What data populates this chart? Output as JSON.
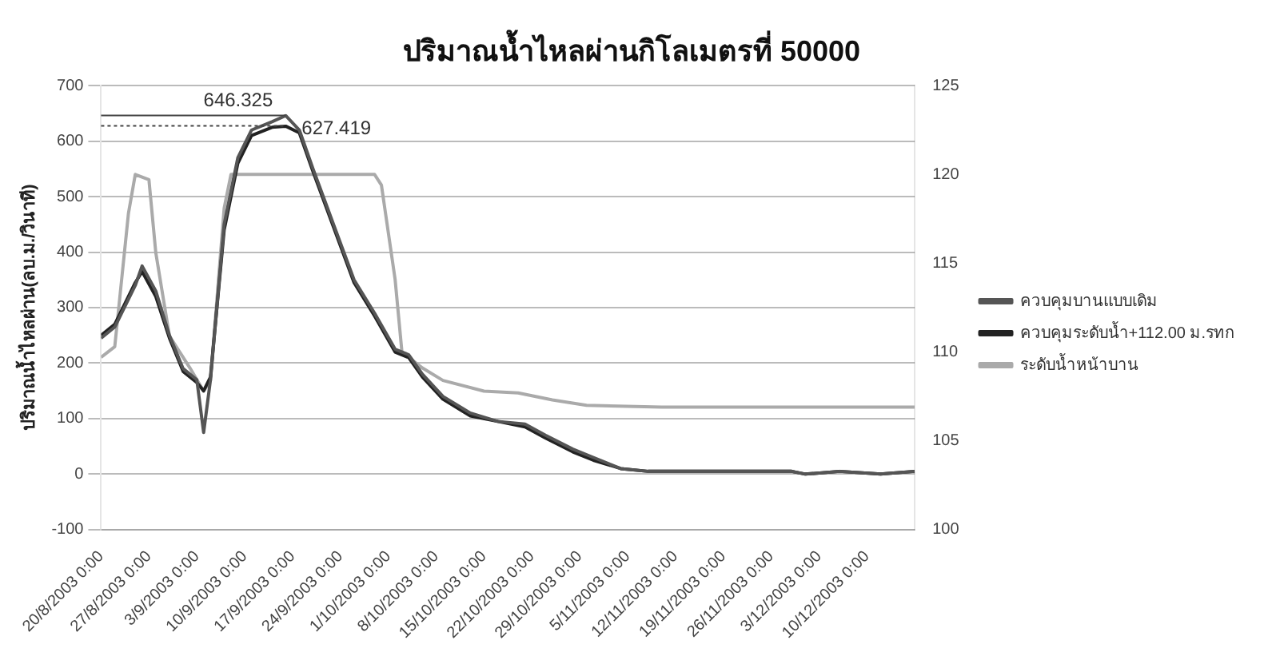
{
  "chart_data": {
    "type": "line",
    "title": "ปริมาณน้ำไหลผ่านกิโลเมตรที่ 50000",
    "ylabel": "ปริมาณน้ำไหลผ่าน(ลบ.ม./วินาที)",
    "series": [
      {
        "name": "ควบคุมบานแบบเดิม",
        "color": "#555555",
        "x": [
          "2003-08-20",
          "2003-08-22",
          "2003-08-25",
          "2003-08-26",
          "2003-08-28",
          "2003-08-30",
          "2003-09-01",
          "2003-09-03",
          "2003-09-04",
          "2003-09-05",
          "2003-09-07",
          "2003-09-09",
          "2003-09-11",
          "2003-09-14",
          "2003-09-16",
          "2003-09-18",
          "2003-09-20",
          "2003-09-23",
          "2003-09-26",
          "2003-09-29",
          "2003-10-02",
          "2003-10-04",
          "2003-10-06",
          "2003-10-09",
          "2003-10-13",
          "2003-10-17",
          "2003-10-21",
          "2003-10-24",
          "2003-10-28",
          "2003-10-31",
          "2003-11-04",
          "2003-11-08",
          "2003-11-15",
          "2003-11-22",
          "2003-11-29",
          "2003-12-01",
          "2003-12-06",
          "2003-12-12",
          "2003-12-17"
        ],
        "values": [
          245,
          265,
          340,
          375,
          330,
          250,
          190,
          170,
          75,
          170,
          450,
          570,
          620,
          635,
          646,
          620,
          550,
          450,
          350,
          290,
          225,
          215,
          180,
          140,
          110,
          95,
          90,
          70,
          45,
          30,
          10,
          5,
          5,
          5,
          5,
          0,
          5,
          0,
          5
        ]
      },
      {
        "name": "ควบคุมระดับน้ำ+112.00 ม.รทก",
        "color": "#222222",
        "x": [
          "2003-08-20",
          "2003-08-22",
          "2003-08-25",
          "2003-08-26",
          "2003-08-28",
          "2003-08-30",
          "2003-09-01",
          "2003-09-03",
          "2003-09-04",
          "2003-09-05",
          "2003-09-07",
          "2003-09-09",
          "2003-09-11",
          "2003-09-14",
          "2003-09-16",
          "2003-09-18",
          "2003-09-20",
          "2003-09-23",
          "2003-09-26",
          "2003-09-29",
          "2003-10-02",
          "2003-10-04",
          "2003-10-06",
          "2003-10-09",
          "2003-10-13",
          "2003-10-17",
          "2003-10-21",
          "2003-10-24",
          "2003-10-28",
          "2003-10-31",
          "2003-11-04",
          "2003-11-08",
          "2003-11-15",
          "2003-11-22",
          "2003-11-29",
          "2003-12-01",
          "2003-12-06",
          "2003-12-12",
          "2003-12-17"
        ],
        "values": [
          250,
          270,
          345,
          365,
          320,
          245,
          185,
          165,
          150,
          175,
          440,
          560,
          610,
          625,
          627,
          615,
          545,
          445,
          345,
          285,
          220,
          210,
          175,
          135,
          105,
          95,
          85,
          65,
          40,
          25,
          10,
          5,
          5,
          5,
          5,
          0,
          5,
          0,
          5
        ]
      },
      {
        "name": "ระดับน้ำหน้าบาน",
        "color": "#aaaaaa",
        "axis": "y2",
        "x": [
          "2003-08-20",
          "2003-08-22",
          "2003-08-24",
          "2003-08-25",
          "2003-08-27",
          "2003-08-28",
          "2003-08-30",
          "2003-09-02",
          "2003-09-04",
          "2003-09-05",
          "2003-09-07",
          "2003-09-08",
          "2003-09-29",
          "2003-09-30",
          "2003-10-02",
          "2003-10-03",
          "2003-10-06",
          "2003-10-09",
          "2003-10-15",
          "2003-10-20",
          "2003-10-25",
          "2003-10-30",
          "2003-11-10",
          "2003-11-25",
          "2003-12-17"
        ],
        "values": [
          109.7,
          110.3,
          117.8,
          120,
          119.7,
          115.6,
          110.9,
          109.1,
          107.8,
          108.4,
          118.1,
          120,
          120,
          119.4,
          114.1,
          110,
          109.1,
          108.4,
          107.8,
          107.7,
          107.3,
          107,
          106.9,
          106.9,
          106.9
        ]
      }
    ],
    "xlim": [
      "2003-08-20",
      "2003-12-17"
    ],
    "xticks": [
      {
        "value": "2003-08-20",
        "label": "20/8/2003 0:00"
      },
      {
        "value": "2003-08-27",
        "label": "27/8/2003 0:00"
      },
      {
        "value": "2003-09-03",
        "label": "3/9/2003 0:00"
      },
      {
        "value": "2003-09-10",
        "label": "10/9/2003 0:00"
      },
      {
        "value": "2003-09-17",
        "label": "17/9/2003 0:00"
      },
      {
        "value": "2003-09-24",
        "label": "24/9/2003 0:00"
      },
      {
        "value": "2003-10-01",
        "label": "1/10/2003 0:00"
      },
      {
        "value": "2003-10-08",
        "label": "8/10/2003 0:00"
      },
      {
        "value": "2003-10-15",
        "label": "15/10/2003 0:00"
      },
      {
        "value": "2003-10-22",
        "label": "22/10/2003 0:00"
      },
      {
        "value": "2003-10-29",
        "label": "29/10/2003 0:00"
      },
      {
        "value": "2003-11-05",
        "label": "5/11/2003 0:00"
      },
      {
        "value": "2003-11-12",
        "label": "12/11/2003 0:00"
      },
      {
        "value": "2003-11-19",
        "label": "19/11/2003 0:00"
      },
      {
        "value": "2003-11-26",
        "label": "26/11/2003 0:00"
      },
      {
        "value": "2003-12-03",
        "label": "3/12/2003 0:00"
      },
      {
        "value": "2003-12-10",
        "label": "10/12/2003 0:00"
      }
    ],
    "ylim": [
      -100,
      700
    ],
    "yticks": [
      -100,
      0,
      100,
      200,
      300,
      400,
      500,
      600,
      700
    ],
    "y2lim": [
      100,
      125
    ],
    "y2ticks": [
      100,
      105,
      110,
      115,
      120,
      125
    ],
    "annotations": [
      {
        "text": "646.325",
        "x": "2003-09-16",
        "y": 646.325
      },
      {
        "text": "627.419",
        "x": "2003-09-16",
        "y": 627.419
      }
    ],
    "grid": "y",
    "legend": "right",
    "marker": "none",
    "line_style": "solid"
  }
}
